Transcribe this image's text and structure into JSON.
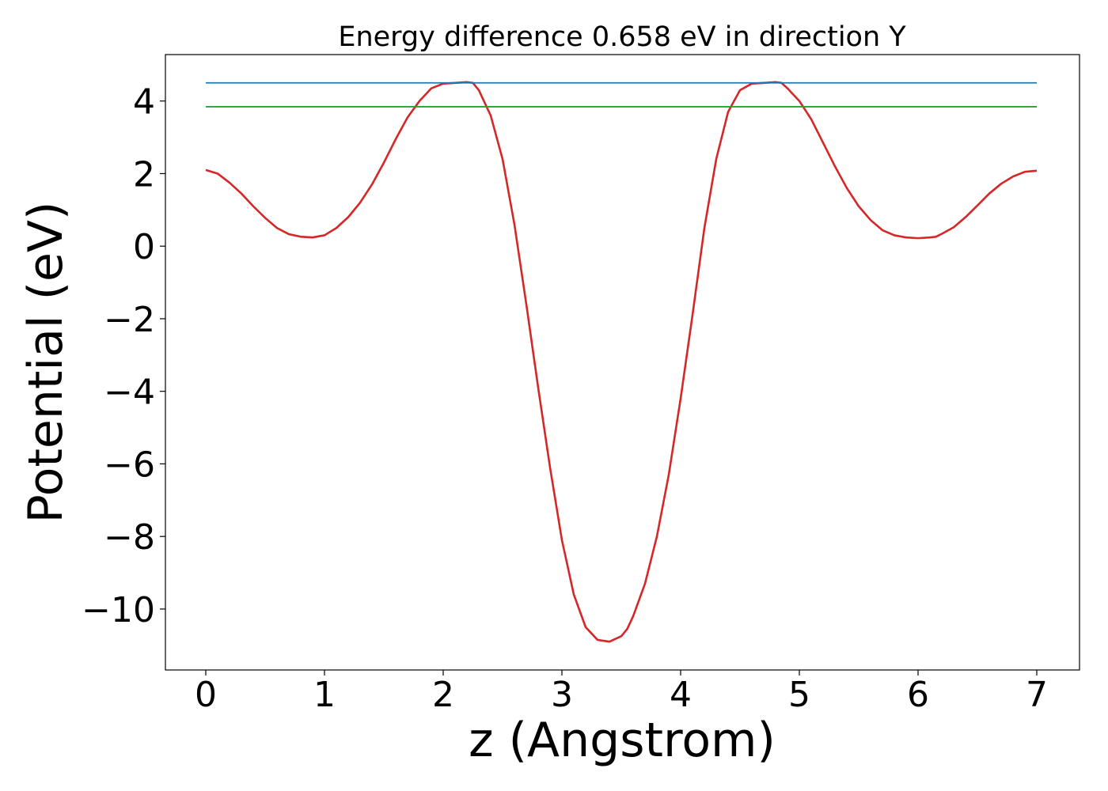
{
  "chart_data": {
    "type": "line",
    "title": "Energy difference 0.658 eV in direction Y",
    "xlabel": "z (Angstrom)",
    "ylabel": "Potential (eV)",
    "xlim": [
      -0.34,
      7.36
    ],
    "ylim": [
      -11.68,
      5.28
    ],
    "xticks": [
      0,
      1,
      2,
      3,
      4,
      5,
      6,
      7
    ],
    "yticks": [
      -10,
      -8,
      -6,
      -4,
      -2,
      0,
      2,
      4
    ],
    "ytick_labels": [
      "−10",
      "−8",
      "−6",
      "−4",
      "−2",
      "0",
      "2",
      "4"
    ],
    "grid": false,
    "legend": "none",
    "series": [
      {
        "color": "#d62728",
        "x": [
          0,
          0.1,
          0.2,
          0.3,
          0.4,
          0.5,
          0.6,
          0.7,
          0.8,
          0.9,
          1.0,
          1.1,
          1.2,
          1.3,
          1.4,
          1.5,
          1.6,
          1.7,
          1.8,
          1.9,
          2.0,
          2.1,
          2.2,
          2.25,
          2.3,
          2.4,
          2.5,
          2.6,
          2.7,
          2.8,
          2.9,
          3.0,
          3.1,
          3.2,
          3.3,
          3.4,
          3.5,
          3.55,
          3.6,
          3.7,
          3.8,
          3.9,
          4.0,
          4.1,
          4.2,
          4.3,
          4.4,
          4.5,
          4.6,
          4.7,
          4.8,
          4.85,
          4.9,
          5.0,
          5.1,
          5.2,
          5.3,
          5.4,
          5.5,
          5.6,
          5.7,
          5.8,
          5.9,
          6.0,
          6.1,
          6.15,
          6.2,
          6.3,
          6.4,
          6.5,
          6.6,
          6.7,
          6.8,
          6.9,
          7.0
        ],
        "y": [
          2.1,
          2.0,
          1.75,
          1.45,
          1.1,
          0.78,
          0.5,
          0.33,
          0.26,
          0.24,
          0.3,
          0.5,
          0.8,
          1.2,
          1.7,
          2.3,
          2.95,
          3.55,
          4.0,
          4.35,
          4.48,
          4.5,
          4.52,
          4.5,
          4.3,
          3.6,
          2.4,
          0.6,
          -1.6,
          -3.9,
          -6.1,
          -8.1,
          -9.6,
          -10.5,
          -10.85,
          -10.9,
          -10.75,
          -10.55,
          -10.2,
          -9.3,
          -8.0,
          -6.3,
          -4.2,
          -1.9,
          0.5,
          2.4,
          3.7,
          4.3,
          4.48,
          4.5,
          4.52,
          4.5,
          4.35,
          4.0,
          3.5,
          2.85,
          2.2,
          1.6,
          1.1,
          0.72,
          0.44,
          0.3,
          0.24,
          0.22,
          0.24,
          0.26,
          0.34,
          0.52,
          0.8,
          1.12,
          1.45,
          1.72,
          1.92,
          2.05,
          2.08
        ]
      },
      {
        "color": "#1f77b4",
        "x": [
          0,
          7
        ],
        "y": [
          4.5,
          4.5
        ]
      },
      {
        "color": "#2ca02c",
        "x": [
          0,
          7
        ],
        "y": [
          3.842,
          3.842
        ]
      }
    ]
  }
}
